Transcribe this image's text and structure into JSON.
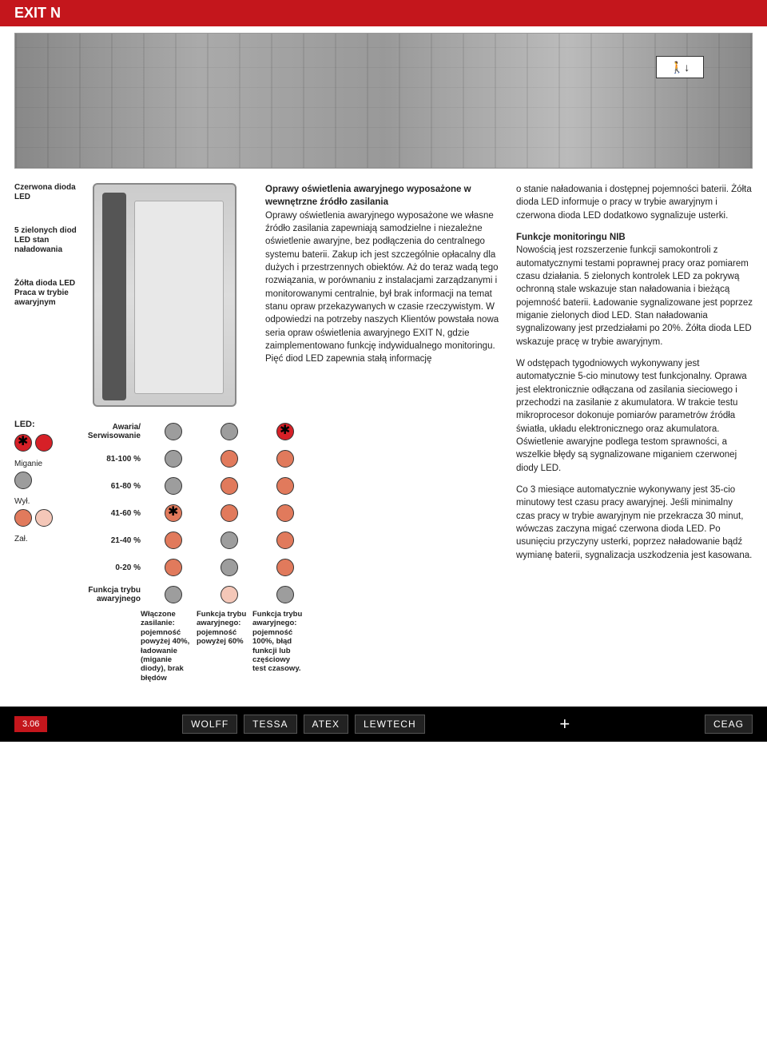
{
  "header": {
    "title": "EXIT N"
  },
  "hero": {
    "exit_sign": "⮞ ↓"
  },
  "device_labels": {
    "red_led": "Czerwona dioda LED",
    "green_leds": "5 zielonych diod LED stan naładowania",
    "yellow_led": "Żółta dioda LED Praca w trybie awaryjnym"
  },
  "legend": {
    "led_title": "LED:",
    "miganie": "Miganie",
    "wyl": "Wył.",
    "zal": "Zał."
  },
  "chart_rows": [
    {
      "label": "Awaria/ Serwisowanie",
      "cells": [
        "grey",
        "grey",
        "redspark"
      ]
    },
    {
      "label": "81-100 %",
      "cells": [
        "grey",
        "orange",
        "orange"
      ]
    },
    {
      "label": "61-80 %",
      "cells": [
        "grey",
        "orange",
        "orange"
      ]
    },
    {
      "label": "41-60 %",
      "cells": [
        "orangespark",
        "orange",
        "orange"
      ]
    },
    {
      "label": "21-40 %",
      "cells": [
        "orange",
        "grey",
        "orange"
      ]
    },
    {
      "label": "0-20 %",
      "cells": [
        "orange",
        "grey",
        "orange"
      ]
    },
    {
      "label": "Funkcja trybu awaryjnego",
      "cells": [
        "grey",
        "pink",
        "grey"
      ]
    }
  ],
  "chart_columns": [
    "",
    "Włączone zasilanie: pojemność powyżej 40%, ładowanie (miganie diody), brak błędów",
    "Funkcja trybu awaryjnego: pojemność powyżej 60%",
    "Funkcja trybu awaryjnego: pojemność 100%, błąd funkcji lub częściowy test czasowy."
  ],
  "colors": {
    "grey": "#9d9d9d",
    "orange": "#e17a5c",
    "pink": "#f4c7b8",
    "red": "#d62027",
    "brand_red": "#c4161c",
    "black": "#000000"
  },
  "body_text": {
    "p1_title": "Oprawy oświetlenia awaryjnego wyposażone w wewnętrzne źródło zasilania",
    "p1": "Oprawy oświetlenia awaryjnego wyposażone we własne źródło zasilania zapewniają samodzielne i niezależne oświetlenie awaryjne, bez podłączenia do centralnego systemu baterii. Zakup ich jest szczególnie opłacalny dla dużych i przestrzennych obiektów. Aż do teraz wadą tego rozwiązania, w porównaniu z instalacjami zarządzanymi i monitorowanymi centralnie, był brak informacji na temat stanu opraw przekazywanych w czasie rzeczywistym. W odpowiedzi na potrzeby naszych Klientów powstała nowa seria opraw oświetlenia awaryjnego EXIT N, gdzie zaimplementowano funkcję indywidualnego monitoringu. Pięć diod LED zapewnia stałą informację",
    "p2": "o stanie naładowania i dostępnej pojemności baterii. Żółta dioda LED informuje o pracy w trybie awaryjnym i czerwona dioda LED dodatkowo sygnalizuje usterki.",
    "p3_title": "Funkcje monitoringu NIB",
    "p3": "Nowością jest rozszerzenie funkcji samokontroli z automatycznymi testami poprawnej pracy oraz pomiarem czasu działania. 5 zielonych kontrolek LED za pokrywą ochronną stale wskazuje stan naładowania i bieżącą pojemność baterii. Ładowanie sygnalizowane jest poprzez miganie zielonych diod LED. Stan naładowania sygnalizowany jest przedziałami po 20%. Żółta dioda LED wskazuje pracę w trybie awaryjnym.",
    "p4": "W odstępach tygodniowych wykonywany jest automatycznie 5-cio minutowy test funkcjonalny. Oprawa jest elektronicznie odłączana od zasilania sieciowego i przechodzi na zasilanie z akumulatora. W trakcie testu mikroprocesor dokonuje pomiarów parametrów źródła światła, układu elektronicznego oraz akumulatora. Oświetlenie awaryjne podlega testom sprawności, a wszelkie błędy są sygnalizowane miganiem czerwonej diody LED.",
    "p5": "Co 3 miesiące automatycznie wykonywany jest 35-cio minutowy test czasu pracy awaryjnej. Jeśli minimalny czas pracy w trybie awaryjnym nie przekracza 30 minut, wówczas zaczyna migać czerwona dioda LED. Po usunięciu przyczyny usterki, poprzez naładowanie bądź wymianę baterii, sygnalizacja uszkodzenia jest kasowana."
  },
  "footer": {
    "page": "3.06",
    "logos": [
      "WOLFF",
      "TESSA",
      "ATEX",
      "LEWTECH"
    ],
    "plus": "+",
    "brand": "CEAG"
  }
}
